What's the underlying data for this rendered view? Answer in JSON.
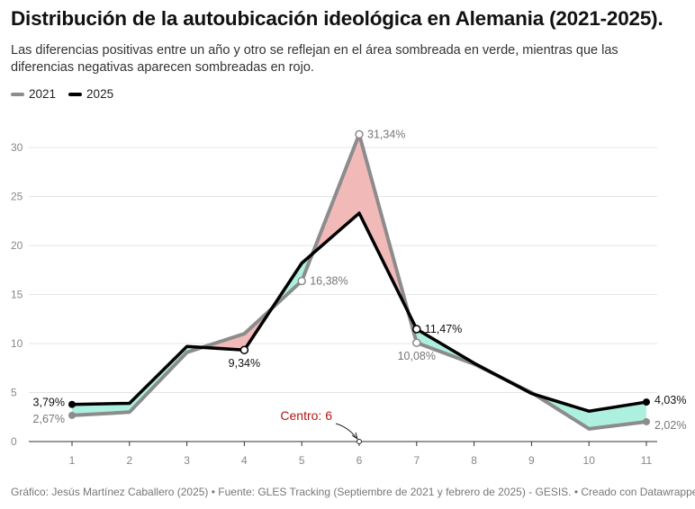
{
  "title": "Distribución de la autoubicación ideológica en Alemania (2021-2025).",
  "subtitle": "Las diferencias positivas entre un año y otro se reflejan en el área sombreada en verde, mientras que las diferencias negativas aparecen sombreadas en rojo.",
  "footer": "Gráfico: Jesús Martínez Caballero (2025) • Fuente: GLES Tracking (Septiembre de 2021 y febrero de 2025) - GESIS. • Creado con Datawrapper",
  "colors": {
    "s2021": "#8c8c8c",
    "s2025": "#000000",
    "positive": "#aef0e0",
    "negative": "#f2b9b9",
    "annotation": "#b51515"
  },
  "chart_data": {
    "type": "line",
    "x": [
      1,
      2,
      3,
      4,
      5,
      6,
      7,
      8,
      9,
      10,
      11
    ],
    "ylim": [
      0,
      30
    ],
    "yticks": [
      0,
      5,
      10,
      15,
      20,
      25,
      30
    ],
    "grid": true,
    "legend_position": "top-left",
    "series": [
      {
        "name": "2021",
        "color": "#8c8c8c",
        "values": [
          2.67,
          3.0,
          9.1,
          11.0,
          16.38,
          31.34,
          10.08,
          7.9,
          5.0,
          1.3,
          2.02
        ]
      },
      {
        "name": "2025",
        "color": "#000000",
        "values": [
          3.79,
          3.9,
          9.7,
          9.34,
          18.2,
          23.3,
          11.47,
          8.0,
          4.9,
          3.1,
          4.03
        ]
      }
    ],
    "annotations": [
      {
        "series": 1,
        "x": 1,
        "text": "3,79%",
        "pos": "left"
      },
      {
        "series": 0,
        "x": 1,
        "text": "2,67%",
        "pos": "left"
      },
      {
        "series": 1,
        "x": 4,
        "text": "9,34%",
        "pos": "below"
      },
      {
        "series": 0,
        "x": 5,
        "text": "16,38%",
        "pos": "right"
      },
      {
        "series": 0,
        "x": 6,
        "text": "31,34%",
        "pos": "right"
      },
      {
        "series": 1,
        "x": 7,
        "text": "11,47%",
        "pos": "right"
      },
      {
        "series": 0,
        "x": 7,
        "text": "10,08%",
        "pos": "below"
      },
      {
        "series": 1,
        "x": 11,
        "text": "4,03%",
        "pos": "right"
      },
      {
        "series": 0,
        "x": 11,
        "text": "2,02%",
        "pos": "right"
      }
    ],
    "center_annotation": {
      "text": "Centro: 6",
      "x": 6,
      "y": 0
    }
  }
}
